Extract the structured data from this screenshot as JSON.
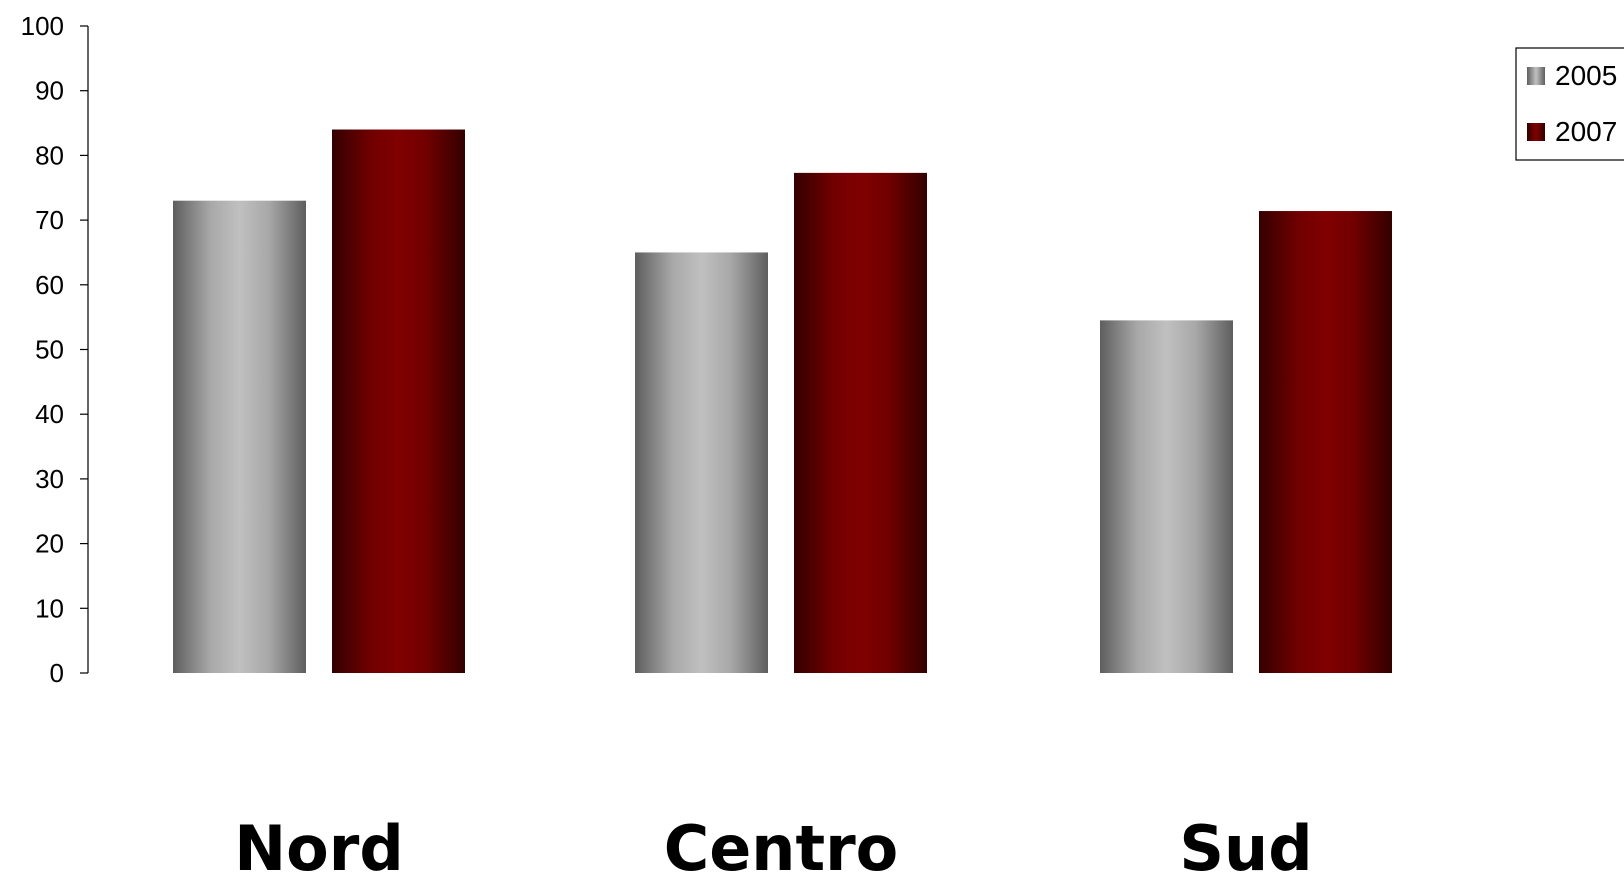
{
  "chart_data": {
    "type": "bar",
    "categories": [
      "Nord",
      "Centro",
      "Sud"
    ],
    "series": [
      {
        "name": "2005",
        "values": [
          73,
          65,
          54.5
        ],
        "color": "#bfbfbf"
      },
      {
        "name": "2007",
        "values": [
          84,
          77.3,
          71.4
        ],
        "color": "#800000"
      }
    ],
    "ylim": [
      0,
      100
    ],
    "yticks": [
      "0",
      "10",
      "20",
      "30",
      "40",
      "50",
      "60",
      "70",
      "80",
      "90",
      "100"
    ],
    "grid": false,
    "legend": "top-right",
    "title": "",
    "xlabel": "",
    "ylabel": ""
  }
}
